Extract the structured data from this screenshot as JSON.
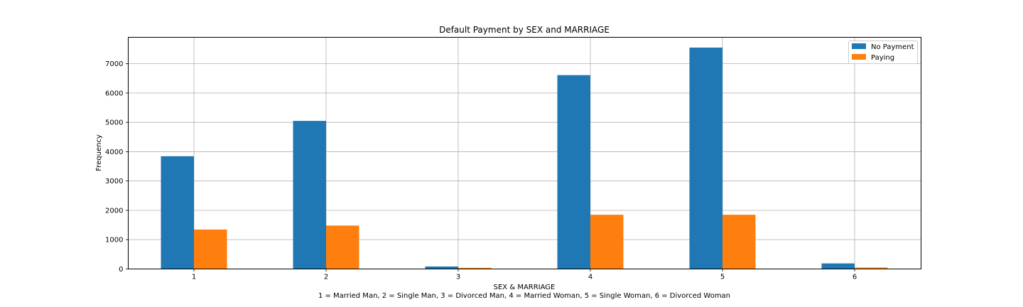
{
  "chart_data": {
    "type": "bar",
    "title": "Default Payment by SEX and MARRIAGE",
    "xlabel": "SEX & MARRIAGE",
    "xlabel_note": "1 = Married Man, 2 = Single Man, 3 = Divorced Man, 4 = Married Woman, 5 = Single Woman, 6 = Divorced Woman",
    "ylabel": "Frequency",
    "categories": [
      "1",
      "2",
      "3",
      "4",
      "5",
      "6"
    ],
    "series": [
      {
        "name": "No Payment",
        "color": "#1f77b4",
        "values": [
          3845,
          5050,
          85,
          6610,
          7550,
          190
        ]
      },
      {
        "name": "Paying",
        "color": "#ff7f0e",
        "values": [
          1345,
          1480,
          40,
          1850,
          1850,
          50
        ]
      }
    ],
    "ylim": [
      0,
      7900
    ],
    "yticks": [
      "0",
      "1000",
      "2000",
      "3000",
      "4000",
      "5000",
      "6000",
      "7000"
    ],
    "grid": true,
    "legend_position": "top-right"
  }
}
